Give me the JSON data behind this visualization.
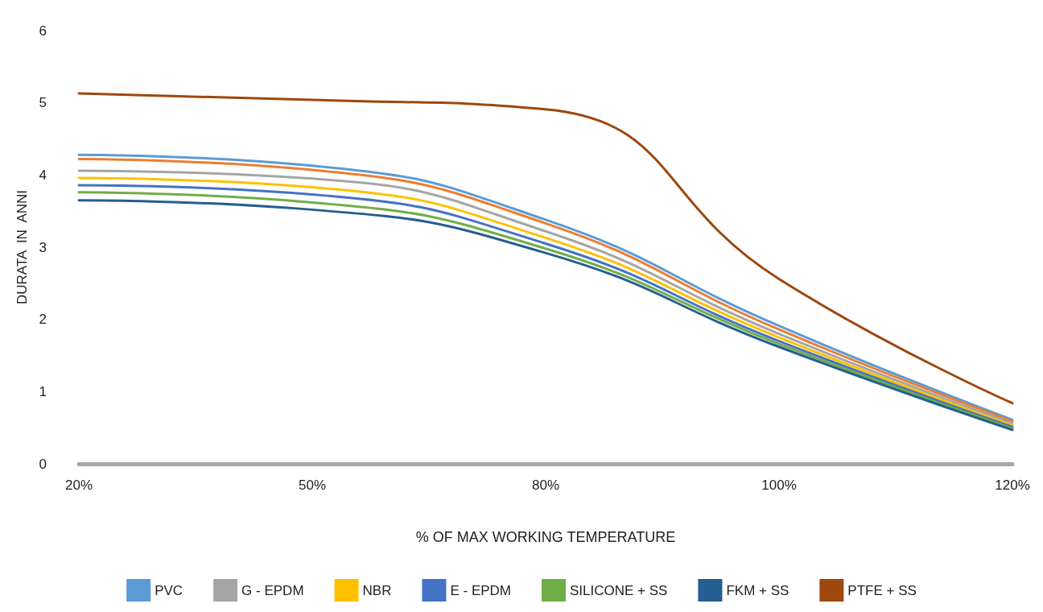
{
  "chart_data": {
    "type": "line",
    "xlabel": "% OF MAX WORKING TEMPERATURE",
    "ylabel": "DURATA  IN  ANNI",
    "categories": [
      "20%",
      "50%",
      "80%",
      "100%",
      "120%"
    ],
    "ylim": [
      0,
      6
    ],
    "yticks": [
      0,
      1,
      2,
      3,
      4,
      5,
      6
    ],
    "grid": false,
    "legend": "bottom",
    "marker": "none",
    "line_style": "solid",
    "series": [
      {
        "name": "PVC",
        "color": "#5b9bd5",
        "values": [
          4.28,
          4.13,
          3.38,
          1.91,
          0.61
        ]
      },
      {
        "color": "#ed7d31",
        "values": [
          4.22,
          4.07,
          3.33,
          1.86,
          0.59
        ]
      },
      {
        "name": "G - EPDM",
        "color": "#a5a5a5",
        "values": [
          4.06,
          3.95,
          3.22,
          1.8,
          0.56
        ]
      },
      {
        "name": "NBR",
        "color": "#ffc000",
        "values": [
          3.96,
          3.83,
          3.13,
          1.75,
          0.53
        ]
      },
      {
        "name": "E - EPDM",
        "color": "#4472c4",
        "values": [
          3.86,
          3.73,
          3.05,
          1.7,
          0.51
        ]
      },
      {
        "name": "SILICONE + SS",
        "color": "#70ad47",
        "values": [
          3.76,
          3.62,
          2.98,
          1.66,
          0.49
        ]
      },
      {
        "name": "FKM + SS",
        "color": "#255e91",
        "values": [
          3.65,
          3.52,
          2.92,
          1.62,
          0.47
        ]
      },
      {
        "name": "PTFE + SS",
        "color": "#9e480e",
        "values": [
          5.13,
          5.04,
          4.91,
          2.56,
          0.84
        ]
      }
    ]
  }
}
